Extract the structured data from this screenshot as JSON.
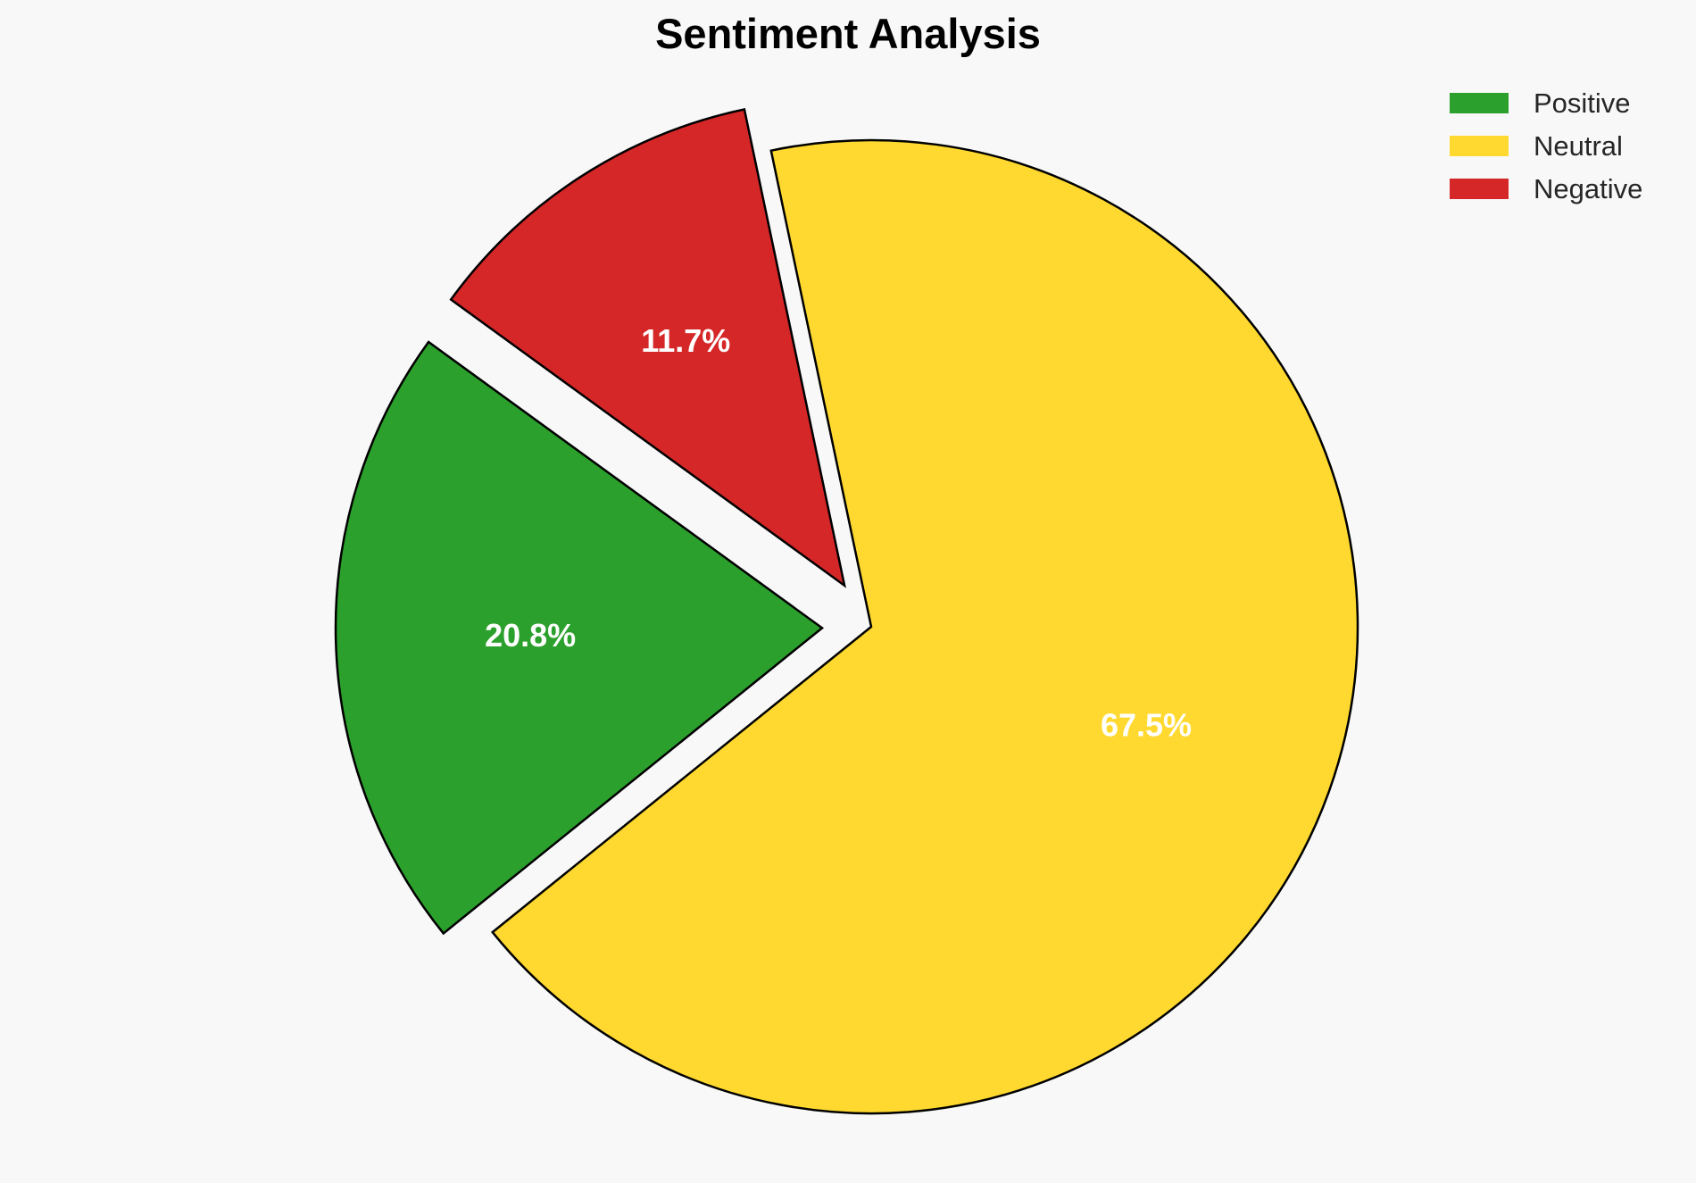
{
  "chart_data": {
    "type": "pie",
    "title": "Sentiment Analysis",
    "categories": [
      "Positive",
      "Neutral",
      "Negative"
    ],
    "values": [
      20.8,
      67.5,
      11.7
    ],
    "labels": [
      "20.8%",
      "67.5%",
      "11.7%"
    ],
    "colors": [
      "#2ca02c",
      "#ffd92f",
      "#d62728"
    ],
    "exploded": [
      true,
      false,
      true
    ],
    "legend": {
      "position": "top-right",
      "entries": [
        "Positive",
        "Neutral",
        "Negative"
      ]
    }
  }
}
